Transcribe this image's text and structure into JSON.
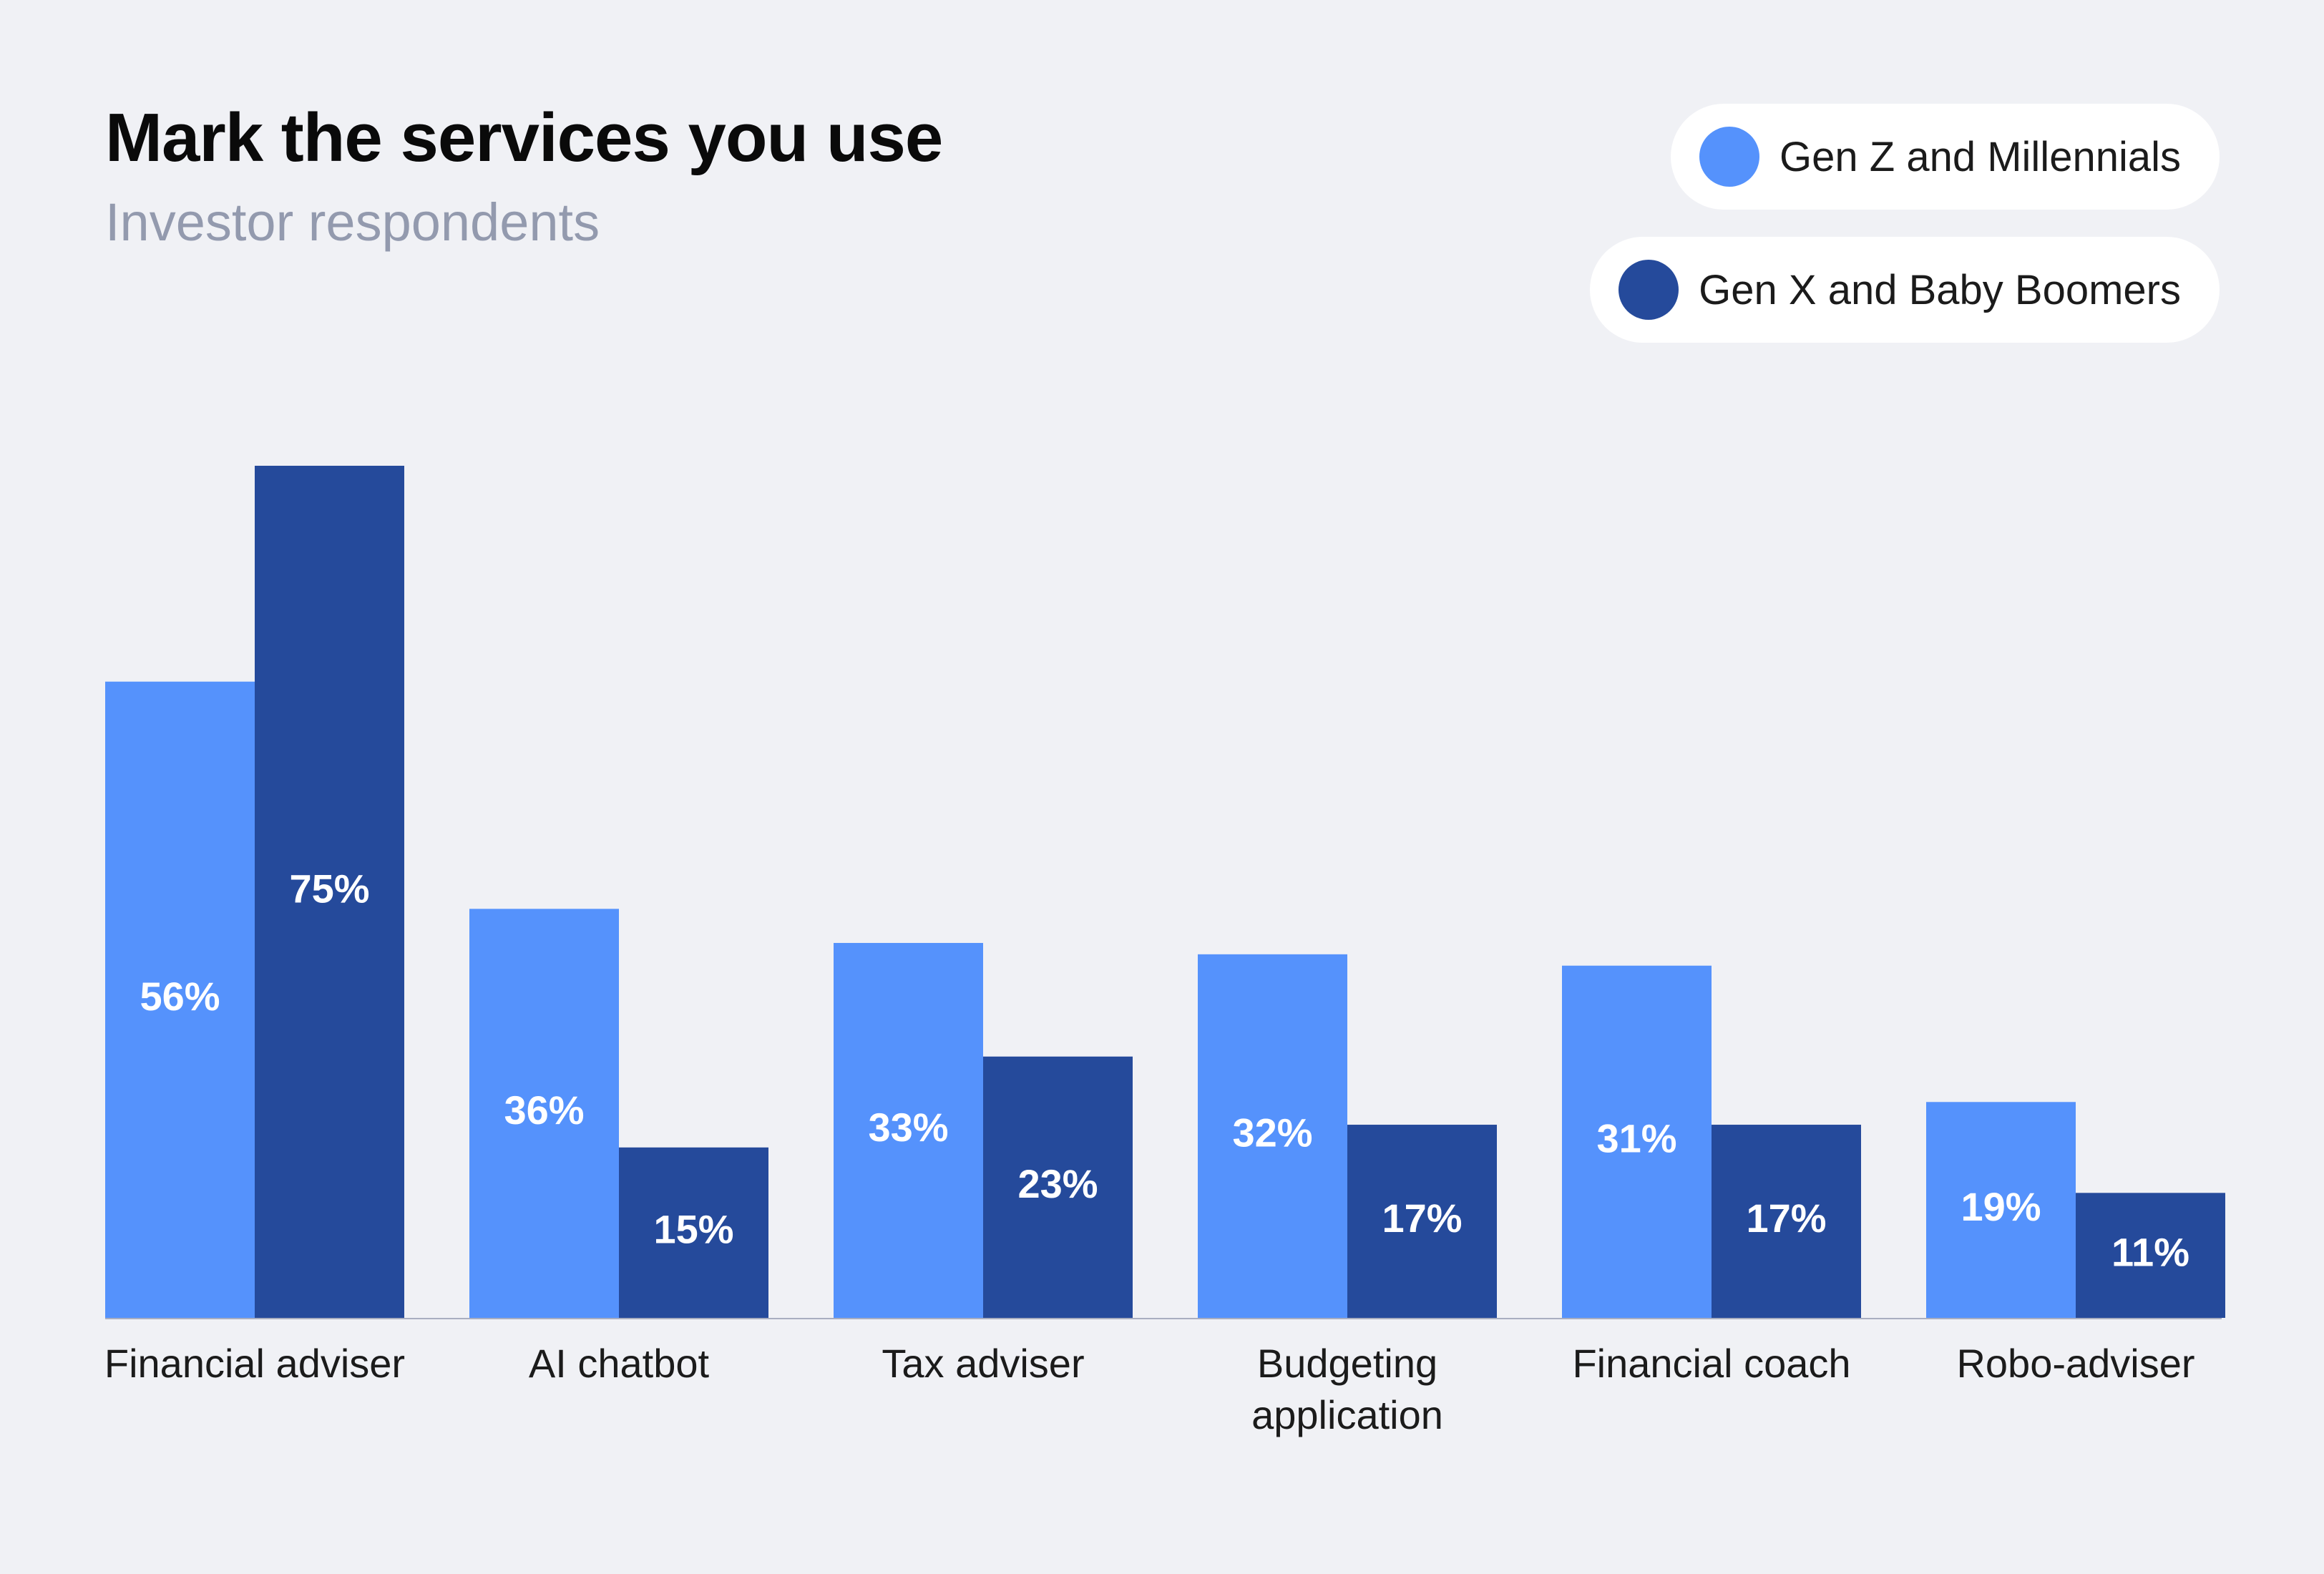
{
  "chart_data": {
    "type": "bar",
    "title": "Mark the services you use",
    "subtitle": "Investor respondents",
    "categories": [
      "Financial adviser",
      "AI chatbot",
      "Tax adviser",
      "Budgeting application",
      "Financial coach",
      "Robo-adviser"
    ],
    "series": [
      {
        "name": "Gen Z and Millennials",
        "color": "#5592fc",
        "values": [
          56,
          36,
          33,
          32,
          31,
          19
        ],
        "labels": [
          "56%",
          "36%",
          "33%",
          "32%",
          "31%",
          "19%"
        ]
      },
      {
        "name": "Gen X and Baby Boomers",
        "color": "#254a9b",
        "values": [
          75,
          15,
          23,
          17,
          17,
          11
        ],
        "labels": [
          "75%",
          "15%",
          "23%",
          "17%",
          "17%",
          "11%"
        ]
      }
    ],
    "ylim": [
      0,
      75
    ],
    "grid": false,
    "legend_position": "top-right",
    "xlabel": "",
    "ylabel": ""
  }
}
